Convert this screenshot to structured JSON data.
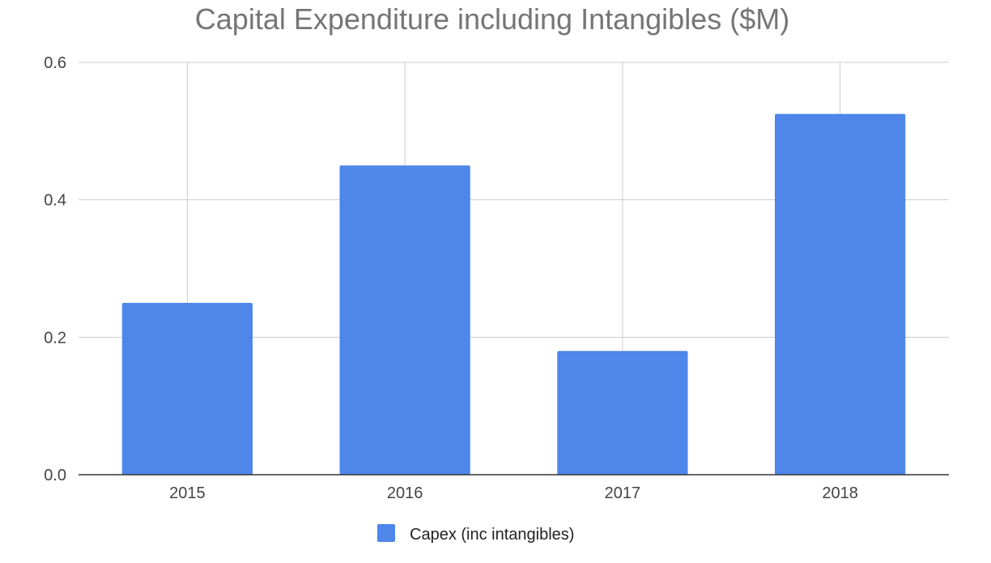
{
  "chart_data": {
    "type": "bar",
    "title": "Capital Expenditure including Intangibles ($M)",
    "categories": [
      "2015",
      "2016",
      "2017",
      "2018"
    ],
    "series": [
      {
        "name": "Capex (inc intangibles)",
        "values": [
          0.25,
          0.45,
          0.18,
          0.525
        ],
        "color": "#4e86ea"
      }
    ],
    "xlabel": "",
    "ylabel": "",
    "ylim": [
      0,
      0.6
    ],
    "yticks": [
      "0.0",
      "0.2",
      "0.4",
      "0.6"
    ],
    "grid": true,
    "legend": "bottom"
  }
}
